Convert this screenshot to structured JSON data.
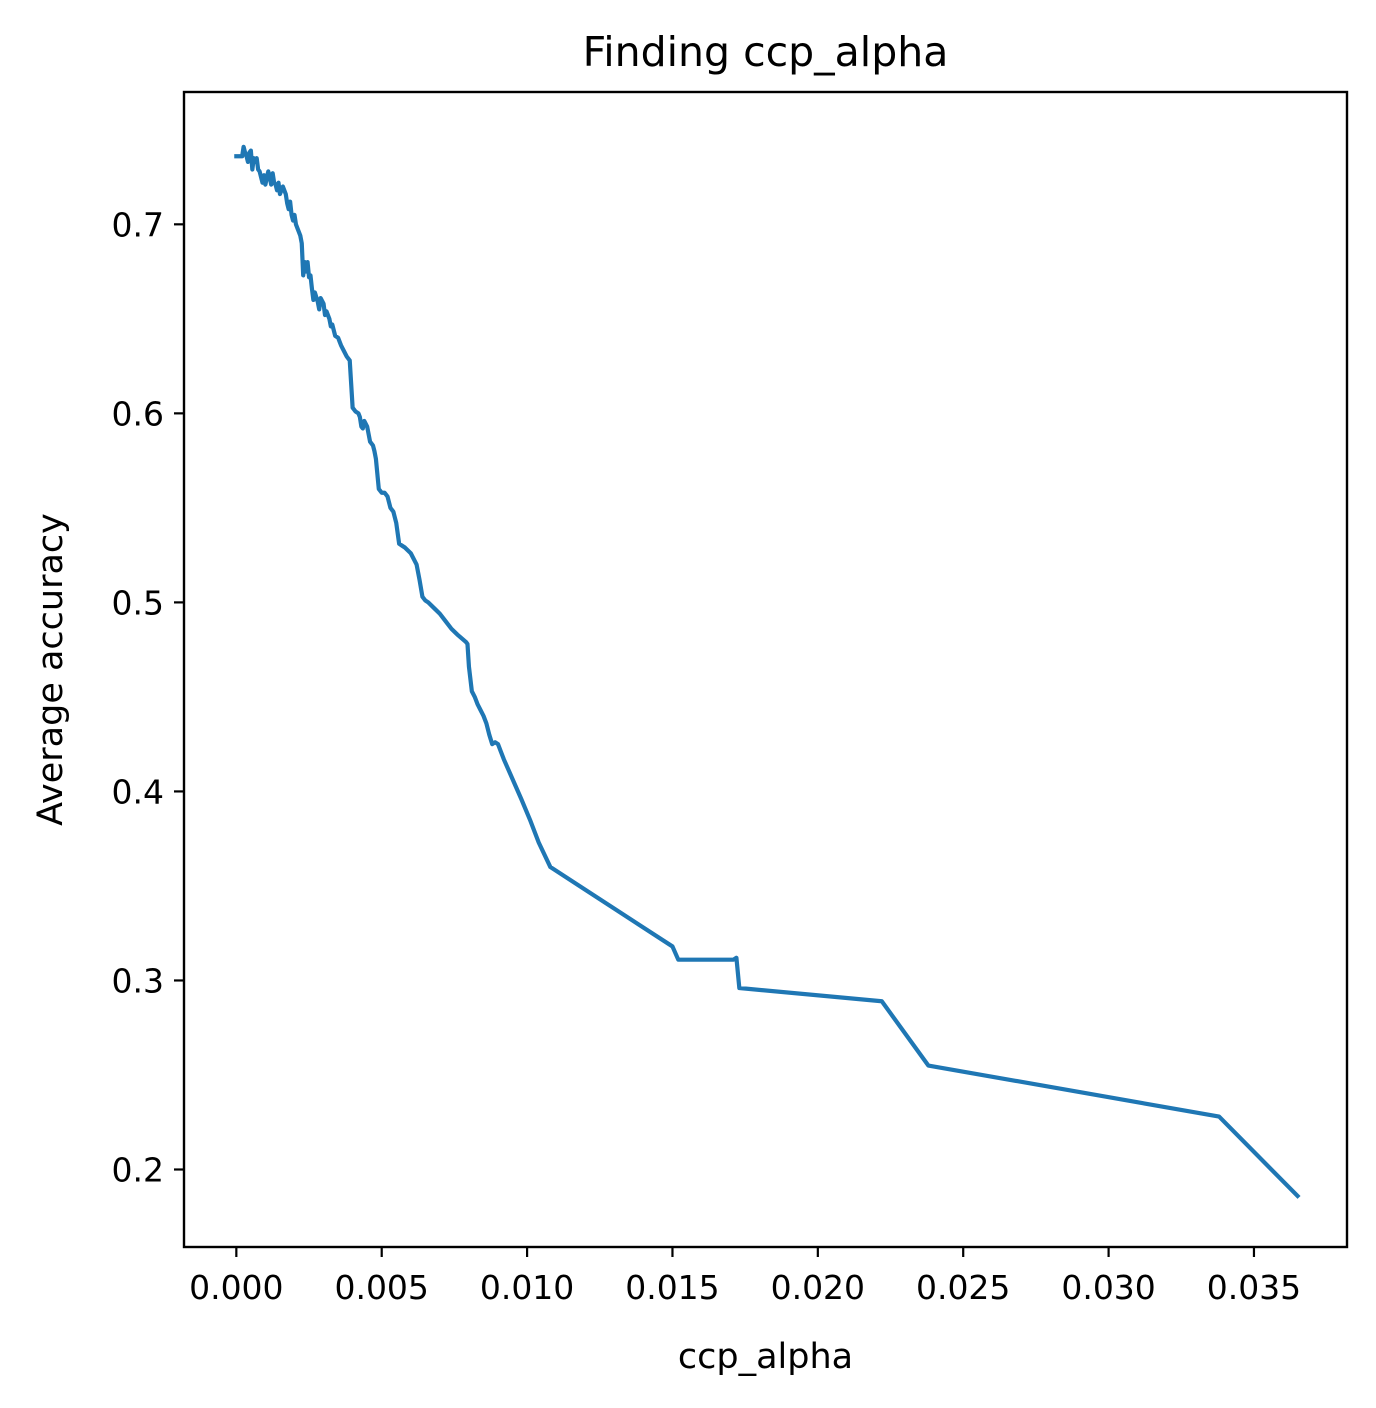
{
  "chart_data": {
    "type": "line",
    "title": "Finding ccp_alpha",
    "xlabel": "ccp_alpha",
    "ylabel": "Average accuracy",
    "xlim": [
      -0.0018,
      0.0382
    ],
    "ylim": [
      0.159,
      0.77
    ],
    "xticks": [
      0.0,
      0.005,
      0.01,
      0.015,
      0.02,
      0.025,
      0.03,
      0.035
    ],
    "xtick_labels": [
      "0.000",
      "0.005",
      "0.010",
      "0.015",
      "0.020",
      "0.025",
      "0.030",
      "0.035"
    ],
    "yticks": [
      0.2,
      0.3,
      0.4,
      0.5,
      0.6,
      0.7
    ],
    "ytick_labels": [
      "0.2",
      "0.3",
      "0.4",
      "0.5",
      "0.6",
      "0.7"
    ],
    "grid": false,
    "colors": {
      "line": "#1f77b4",
      "axes": "#000000",
      "background": "#ffffff"
    },
    "series": [
      {
        "x": [
          0.0,
          0.0002,
          0.00025,
          0.0003,
          0.00035,
          0.0004,
          0.00045,
          0.0005,
          0.00055,
          0.0006,
          0.00065,
          0.0007,
          0.00075,
          0.0008,
          0.00085,
          0.0009,
          0.00095,
          0.001,
          0.00105,
          0.0011,
          0.0012,
          0.00125,
          0.0013,
          0.00135,
          0.0014,
          0.00145,
          0.0015,
          0.0016,
          0.0017,
          0.00175,
          0.0018,
          0.00185,
          0.0019,
          0.00195,
          0.002,
          0.00205,
          0.0021,
          0.0022,
          0.00225,
          0.0023,
          0.00235,
          0.0024,
          0.00245,
          0.0025,
          0.00255,
          0.0026,
          0.00265,
          0.0027,
          0.0028,
          0.00285,
          0.0029,
          0.003,
          0.00305,
          0.0031,
          0.0032,
          0.00325,
          0.0033,
          0.0034,
          0.0035,
          0.0036,
          0.0037,
          0.0038,
          0.0039,
          0.004,
          0.0041,
          0.0042,
          0.00425,
          0.0043,
          0.00435,
          0.0044,
          0.0045,
          0.0046,
          0.0047,
          0.00475,
          0.0048,
          0.0049,
          0.005,
          0.0051,
          0.0052,
          0.0053,
          0.0054,
          0.0055,
          0.0056,
          0.0057,
          0.0058,
          0.006,
          0.0062,
          0.0063,
          0.0064,
          0.0065,
          0.0066,
          0.0068,
          0.007,
          0.0072,
          0.0074,
          0.0076,
          0.0079,
          0.00795,
          0.008,
          0.0081,
          0.0082,
          0.0083,
          0.0084,
          0.0085,
          0.0086,
          0.0087,
          0.0088,
          0.0089,
          0.009,
          0.0091,
          0.0092,
          0.0094,
          0.0096,
          0.0098,
          0.0101,
          0.0104,
          0.0108,
          0.013,
          0.015,
          0.0152,
          0.0171,
          0.0172,
          0.0173,
          0.0222,
          0.0238,
          0.0338,
          0.0365
        ],
        "y": [
          0.736,
          0.736,
          0.741,
          0.738,
          0.736,
          0.733,
          0.738,
          0.739,
          0.729,
          0.735,
          0.733,
          0.735,
          0.729,
          0.728,
          0.725,
          0.722,
          0.726,
          0.721,
          0.725,
          0.728,
          0.721,
          0.727,
          0.722,
          0.721,
          0.718,
          0.722,
          0.716,
          0.72,
          0.716,
          0.711,
          0.708,
          0.712,
          0.705,
          0.702,
          0.705,
          0.7,
          0.698,
          0.694,
          0.69,
          0.673,
          0.68,
          0.675,
          0.68,
          0.672,
          0.673,
          0.666,
          0.66,
          0.664,
          0.659,
          0.655,
          0.661,
          0.658,
          0.652,
          0.654,
          0.65,
          0.646,
          0.647,
          0.641,
          0.64,
          0.636,
          0.633,
          0.63,
          0.628,
          0.603,
          0.601,
          0.6,
          0.598,
          0.593,
          0.592,
          0.596,
          0.593,
          0.585,
          0.583,
          0.58,
          0.576,
          0.56,
          0.558,
          0.558,
          0.556,
          0.55,
          0.548,
          0.542,
          0.531,
          0.53,
          0.529,
          0.526,
          0.52,
          0.512,
          0.503,
          0.501,
          0.5,
          0.497,
          0.494,
          0.49,
          0.486,
          0.483,
          0.479,
          0.478,
          0.466,
          0.453,
          0.45,
          0.446,
          0.443,
          0.44,
          0.436,
          0.43,
          0.425,
          0.426,
          0.425,
          0.421,
          0.417,
          0.41,
          0.403,
          0.396,
          0.385,
          0.373,
          0.36,
          0.338,
          0.318,
          0.311,
          0.311,
          0.312,
          0.296,
          0.289,
          0.255,
          0.228,
          0.186
        ]
      }
    ]
  }
}
